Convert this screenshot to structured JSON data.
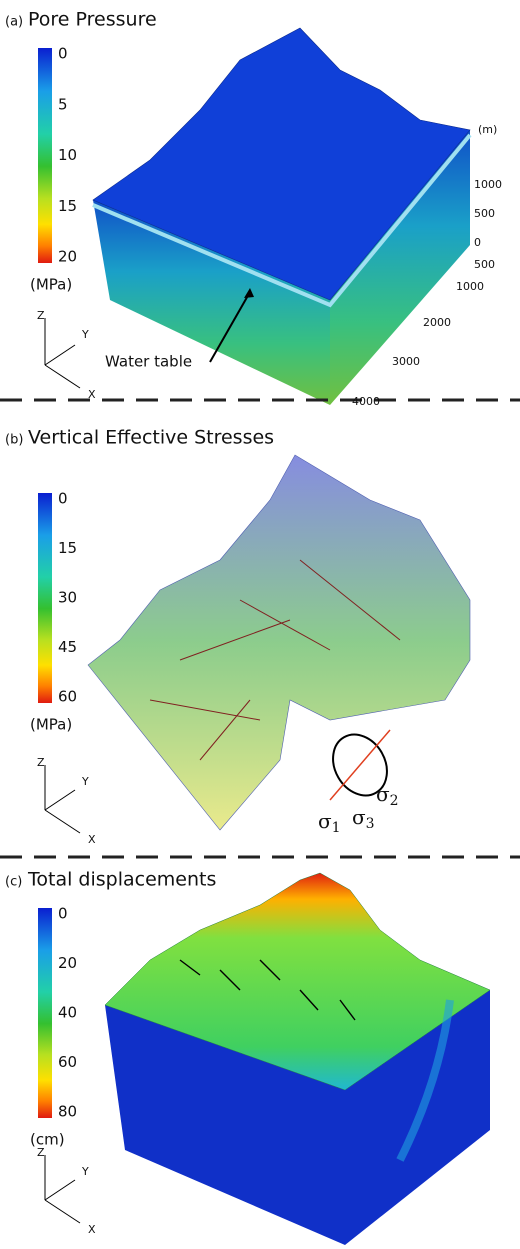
{
  "panels": [
    {
      "label": "(a)",
      "title": "Pore Pressure",
      "colorbar": {
        "ticks": [
          0,
          5,
          10,
          15,
          20
        ],
        "unit": "(MPa)"
      },
      "axes": {
        "z": "Z",
        "y": "Y",
        "x": "X"
      },
      "annotation": "Water table",
      "scale": {
        "unit": "(m)",
        "vertical": [
          1000,
          500,
          0
        ],
        "horizontal": [
          500,
          1000,
          2000,
          3000,
          4000
        ]
      }
    },
    {
      "label": "(b)",
      "title": "Vertical Effective Stresses",
      "colorbar": {
        "ticks": [
          0,
          15,
          30,
          45,
          60
        ],
        "unit": "(MPa)"
      },
      "axes": {
        "z": "Z",
        "y": "Y",
        "x": "X"
      },
      "stress_labels": [
        {
          "symbol": "σ",
          "index": "2"
        },
        {
          "symbol": "σ",
          "index": "1"
        },
        {
          "symbol": "σ",
          "index": "3"
        }
      ]
    },
    {
      "label": "(c)",
      "title": "Total displacements",
      "colorbar": {
        "ticks": [
          0,
          20,
          40,
          60,
          80
        ],
        "unit": "(cm)"
      },
      "axes": {
        "z": "Z",
        "y": "Y",
        "x": "X"
      }
    }
  ]
}
